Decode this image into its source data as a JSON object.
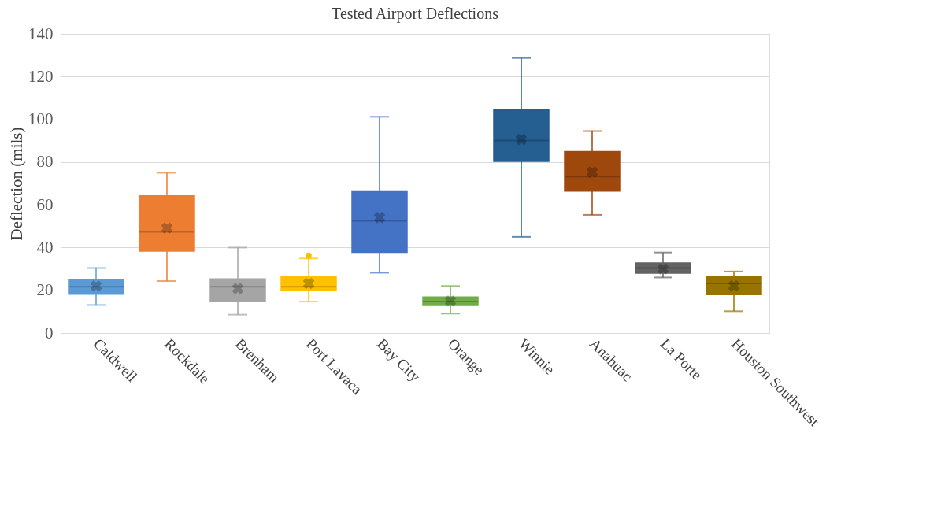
{
  "chart_data": {
    "type": "box",
    "title": "Tested Airport Deflections",
    "ylabel": "Deflection (mils)",
    "categories": [
      "Caldwell",
      "Rockdale",
      "Brenham",
      "Port Lavaca",
      "Bay City",
      "Orange",
      "Winnie",
      "Anahuac",
      "La Porte",
      "Houston Southwest"
    ],
    "colors": [
      "#5b9bd5",
      "#ed7d31",
      "#a5a5a5",
      "#ffc000",
      "#4472c4",
      "#70ad47",
      "#255e91",
      "#9e480e",
      "#636363",
      "#997300"
    ],
    "boxes": [
      {
        "low": 13.1,
        "q1": 18.1,
        "median": 21.6,
        "q3": 24.8,
        "high": 30.4,
        "mean": 22
      },
      {
        "low": 24.3,
        "q1": 38.3,
        "median": 47.3,
        "q3": 64.2,
        "high": 75,
        "mean": 49.1
      },
      {
        "low": 8.6,
        "q1": 14.7,
        "median": 21.6,
        "q3": 25.3,
        "high": 40,
        "mean": 20.8
      },
      {
        "low": 14.7,
        "q1": 19.8,
        "median": 21.6,
        "q3": 26.4,
        "high": 34.9,
        "mean": 23.2,
        "outliers": [
          36.2
        ]
      },
      {
        "low": 28.2,
        "q1": 37.8,
        "median": 52.5,
        "q3": 66.5,
        "high": 101.2,
        "mean": 54
      },
      {
        "low": 9.1,
        "q1": 12.9,
        "median": 14.7,
        "q3": 16.9,
        "high": 22,
        "mean": 15
      },
      {
        "low": 45,
        "q1": 80.3,
        "median": 90.1,
        "q3": 104.6,
        "high": 128.7,
        "mean": 90.6
      },
      {
        "low": 55.3,
        "q1": 66.4,
        "median": 73.2,
        "q3": 84.9,
        "high": 94.5,
        "mean": 75.3
      },
      {
        "low": 26,
        "q1": 28,
        "median": 30.4,
        "q3": 32.8,
        "high": 37.7,
        "mean": 30
      },
      {
        "low": 10.2,
        "q1": 18,
        "median": 23.2,
        "q3": 26.6,
        "high": 28.8,
        "mean": 22.1
      }
    ],
    "ylim": [
      0,
      140
    ],
    "yticks": [
      0,
      20,
      40,
      60,
      80,
      100,
      120,
      140
    ],
    "grid": "y",
    "marker": "cross"
  }
}
